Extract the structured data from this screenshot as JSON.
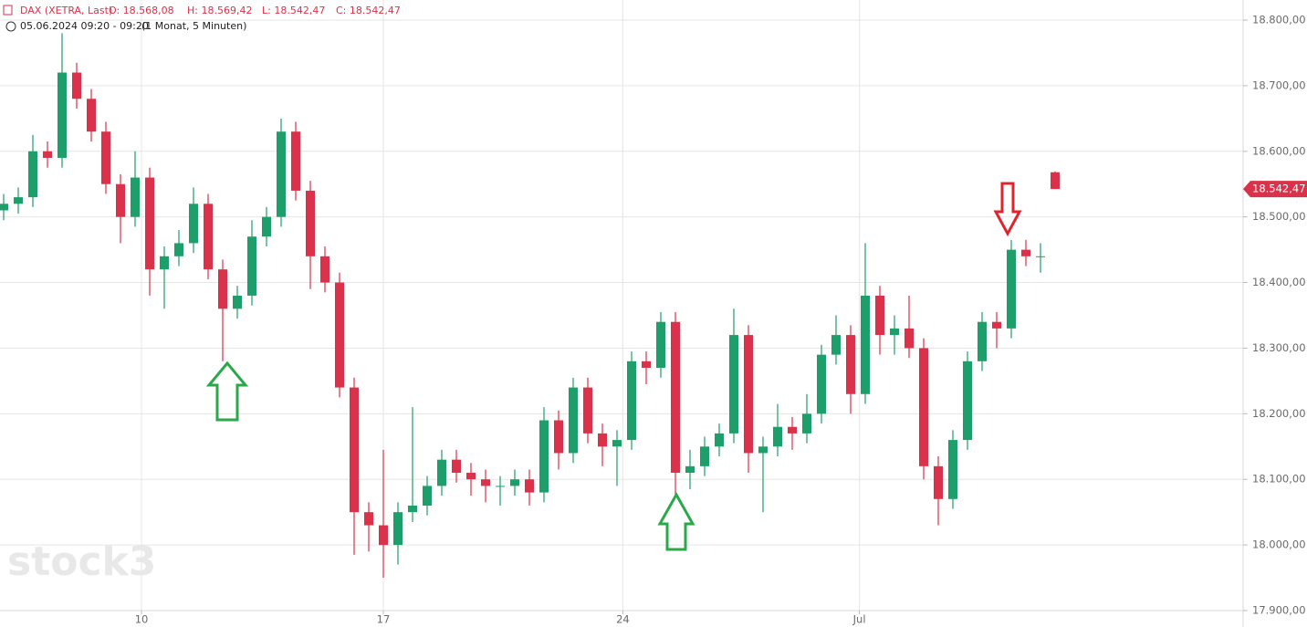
{
  "chart_data": {
    "type": "candlestick",
    "header": {
      "symbol": "DAX (XETRA, Last)",
      "open_label": "O: 18.568,08",
      "high_label": "H: 18.569,42",
      "low_label": "L: 18.542,47",
      "close_label": "C: 18.542,47",
      "timestamp": "05.06.2024 09:20 - 09:20",
      "range": "(1 Monat, 5 Minuten)"
    },
    "watermark": "stock3",
    "up_color": "#1e9e6a",
    "down_color": "#d9324a",
    "open": [
      18510,
      18520,
      18530,
      18600,
      18590,
      18720,
      18680,
      18630,
      18550,
      18500,
      18560,
      18420,
      18440,
      18460,
      18520,
      18420,
      18360,
      18380,
      18470,
      18500,
      18630,
      18540,
      18440,
      18400,
      18240,
      18050,
      18030,
      18000,
      18050,
      18060,
      18090,
      18130,
      18110,
      18100,
      18090,
      18090,
      18100,
      18080,
      18190,
      18140,
      18240,
      18170,
      18150,
      18160,
      18280,
      18270,
      18340,
      18110,
      18120,
      18150,
      18170,
      18320,
      18140,
      18150,
      18180,
      18170,
      18200,
      18290,
      18320,
      18230,
      18380,
      18320,
      18330,
      18300,
      18120,
      18070,
      18160,
      18280,
      18340,
      18330,
      18450,
      18440,
      18568.08
    ],
    "high": [
      18535,
      18545,
      18625,
      18615,
      18780,
      18735,
      18695,
      18645,
      18565,
      18600,
      18575,
      18455,
      18480,
      18545,
      18535,
      18435,
      18395,
      18495,
      18515,
      18650,
      18645,
      18555,
      18455,
      18415,
      18255,
      18065,
      18145,
      18065,
      18210,
      18105,
      18145,
      18145,
      18125,
      18115,
      18105,
      18115,
      18115,
      18210,
      18205,
      18255,
      18255,
      18185,
      18175,
      18295,
      18295,
      18355,
      18355,
      18145,
      18165,
      18185,
      18360,
      18335,
      18165,
      18215,
      18195,
      18230,
      18305,
      18350,
      18335,
      18460,
      18395,
      18350,
      18380,
      18315,
      18135,
      18175,
      18295,
      18355,
      18355,
      18465,
      18465,
      18460,
      18569.42
    ],
    "low": [
      18495,
      18505,
      18515,
      18575,
      18575,
      18665,
      18615,
      18535,
      18460,
      18485,
      18380,
      18360,
      18425,
      18445,
      18405,
      18280,
      18345,
      18365,
      18455,
      18485,
      18525,
      18390,
      18385,
      18225,
      17985,
      17990,
      17950,
      17970,
      18035,
      18045,
      18075,
      18095,
      18075,
      18065,
      18060,
      18075,
      18060,
      18065,
      18115,
      18125,
      18155,
      18120,
      18090,
      18145,
      18245,
      18255,
      18075,
      18085,
      18105,
      18135,
      18155,
      18110,
      18050,
      18135,
      18145,
      18155,
      18185,
      18275,
      18200,
      18215,
      18290,
      18290,
      18285,
      18100,
      18030,
      18055,
      18145,
      18265,
      18300,
      18315,
      18425,
      18415,
      18542.47
    ],
    "close": [
      18520,
      18530,
      18600,
      18590,
      18720,
      18680,
      18630,
      18550,
      18500,
      18560,
      18420,
      18440,
      18460,
      18520,
      18420,
      18360,
      18380,
      18470,
      18500,
      18630,
      18540,
      18440,
      18400,
      18240,
      18050,
      18030,
      18000,
      18050,
      18060,
      18090,
      18130,
      18110,
      18100,
      18090,
      18090,
      18100,
      18080,
      18190,
      18140,
      18240,
      18170,
      18150,
      18160,
      18280,
      18270,
      18340,
      18110,
      18120,
      18150,
      18170,
      18320,
      18140,
      18150,
      18180,
      18170,
      18200,
      18290,
      18320,
      18230,
      18380,
      18320,
      18330,
      18300,
      18120,
      18070,
      18160,
      18280,
      18340,
      18330,
      18450,
      18440,
      18440,
      18542.47
    ],
    "last_value_label": "18.542,47",
    "xlim": [
      -0.25,
      84.875
    ],
    "ylim": [
      17900,
      18800
    ],
    "xticks": [
      {
        "value": 9.44,
        "label": "10"
      },
      {
        "value": 26,
        "label": "17"
      },
      {
        "value": 42.4,
        "label": "24"
      },
      {
        "value": 58.6,
        "label": "Jul"
      }
    ],
    "yticks": [
      {
        "value": 17900,
        "label": "17.900,00"
      },
      {
        "value": 18000,
        "label": "18.000,00"
      },
      {
        "value": 18100,
        "label": "18.100,00"
      },
      {
        "value": 18200,
        "label": "18.200,00"
      },
      {
        "value": 18300,
        "label": "18.300,00"
      },
      {
        "value": 18400,
        "label": "18.400,00"
      },
      {
        "value": 18500,
        "label": "18.500,00"
      },
      {
        "value": 18600,
        "label": "18.600,00"
      },
      {
        "value": 18700,
        "label": "18.700,00"
      },
      {
        "value": 18800,
        "label": "18.800,00"
      }
    ],
    "grid": true
  }
}
